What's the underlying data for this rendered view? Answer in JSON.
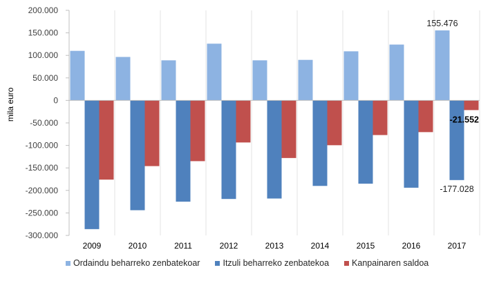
{
  "chart_data": {
    "type": "bar",
    "title": "",
    "xlabel": "",
    "ylabel": "mila euro",
    "ylim": [
      -300000,
      200000
    ],
    "ytick_step": 50000,
    "ytick_labels": [
      "200.000",
      "150.000",
      "100.000",
      "50.000",
      "0",
      "-50.000",
      "-100.000",
      "-150.000",
      "-200.000",
      "-250.000",
      "-300.000"
    ],
    "yticks": [
      200000,
      150000,
      100000,
      50000,
      0,
      -50000,
      -100000,
      -150000,
      -200000,
      -250000,
      -300000
    ],
    "grid": "vertical-category-separators",
    "legend_position": "bottom-left",
    "categories": [
      "2009",
      "2010",
      "2011",
      "2012",
      "2013",
      "2014",
      "2015",
      "2016",
      "2017"
    ],
    "series": [
      {
        "name": "Ordaindu beharreko zenbatekoar",
        "color": "#8DB3E2",
        "values": [
          110000,
          96500,
          89000,
          126000,
          89000,
          90000,
          109000,
          124000,
          155476
        ]
      },
      {
        "name": "Itzuli beharreko zenbatekoa",
        "color": "#4F81BD",
        "values": [
          -286000,
          -244000,
          -225000,
          -219000,
          -218000,
          -190000,
          -185000,
          -194000,
          -177028
        ]
      },
      {
        "name": "Kanpainaren saldoa",
        "color": "#C0504D",
        "values": [
          -176000,
          -146000,
          -135000,
          -93500,
          -128000,
          -99600,
          -77000,
          -70500,
          -21552
        ]
      }
    ],
    "annotations": [
      {
        "series": 0,
        "category": "2017",
        "text": "155.476",
        "bold": false,
        "position": "above"
      },
      {
        "series": 1,
        "category": "2017",
        "text": "-177.028",
        "bold": false,
        "position": "below"
      },
      {
        "series": 2,
        "category": "2017",
        "text": "-21.552",
        "bold": true,
        "position": "below"
      }
    ]
  }
}
